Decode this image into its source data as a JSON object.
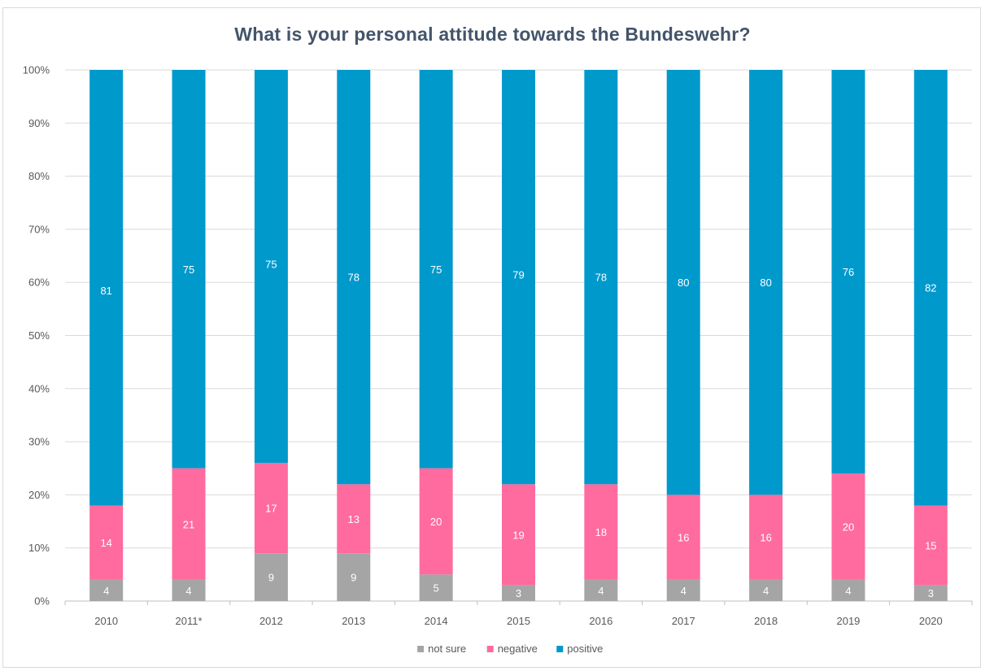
{
  "chart_data": {
    "type": "bar",
    "stacked": true,
    "title": "What is your personal attitude towards the Bundeswehr?",
    "xlabel": "",
    "ylabel": "",
    "categories": [
      "2010",
      "2011*",
      "2012",
      "2013",
      "2014",
      "2015",
      "2016",
      "2017",
      "2018",
      "2019",
      "2020"
    ],
    "series": [
      {
        "name": "not sure",
        "color": "#a5a5a5",
        "values": [
          4,
          4,
          9,
          9,
          5,
          3,
          4,
          4,
          4,
          4,
          3
        ]
      },
      {
        "name": "negative",
        "color": "#ff6b9f",
        "values": [
          14,
          21,
          17,
          13,
          20,
          19,
          18,
          16,
          16,
          20,
          15
        ]
      },
      {
        "name": "positive",
        "color": "#0099cc",
        "values": [
          81,
          75,
          75,
          78,
          75,
          79,
          78,
          80,
          80,
          76,
          82
        ]
      }
    ],
    "y_ticks": [
      "0%",
      "10%",
      "20%",
      "30%",
      "40%",
      "50%",
      "60%",
      "70%",
      "80%",
      "90%",
      "100%"
    ],
    "ylim": [
      0,
      100
    ],
    "grid": true,
    "legend": "bottom"
  }
}
